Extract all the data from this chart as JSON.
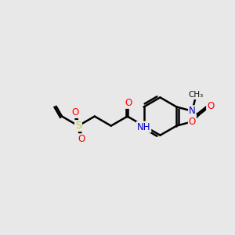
{
  "background_color": "#e8e8e8",
  "bond_color": "#000000",
  "bond_width": 1.8,
  "atom_colors": {
    "O": "#ff0000",
    "N": "#0000cd",
    "S": "#cccc00",
    "C": "#000000",
    "H": "#555555"
  },
  "figsize": [
    3.0,
    3.0
  ],
  "dpi": 100
}
